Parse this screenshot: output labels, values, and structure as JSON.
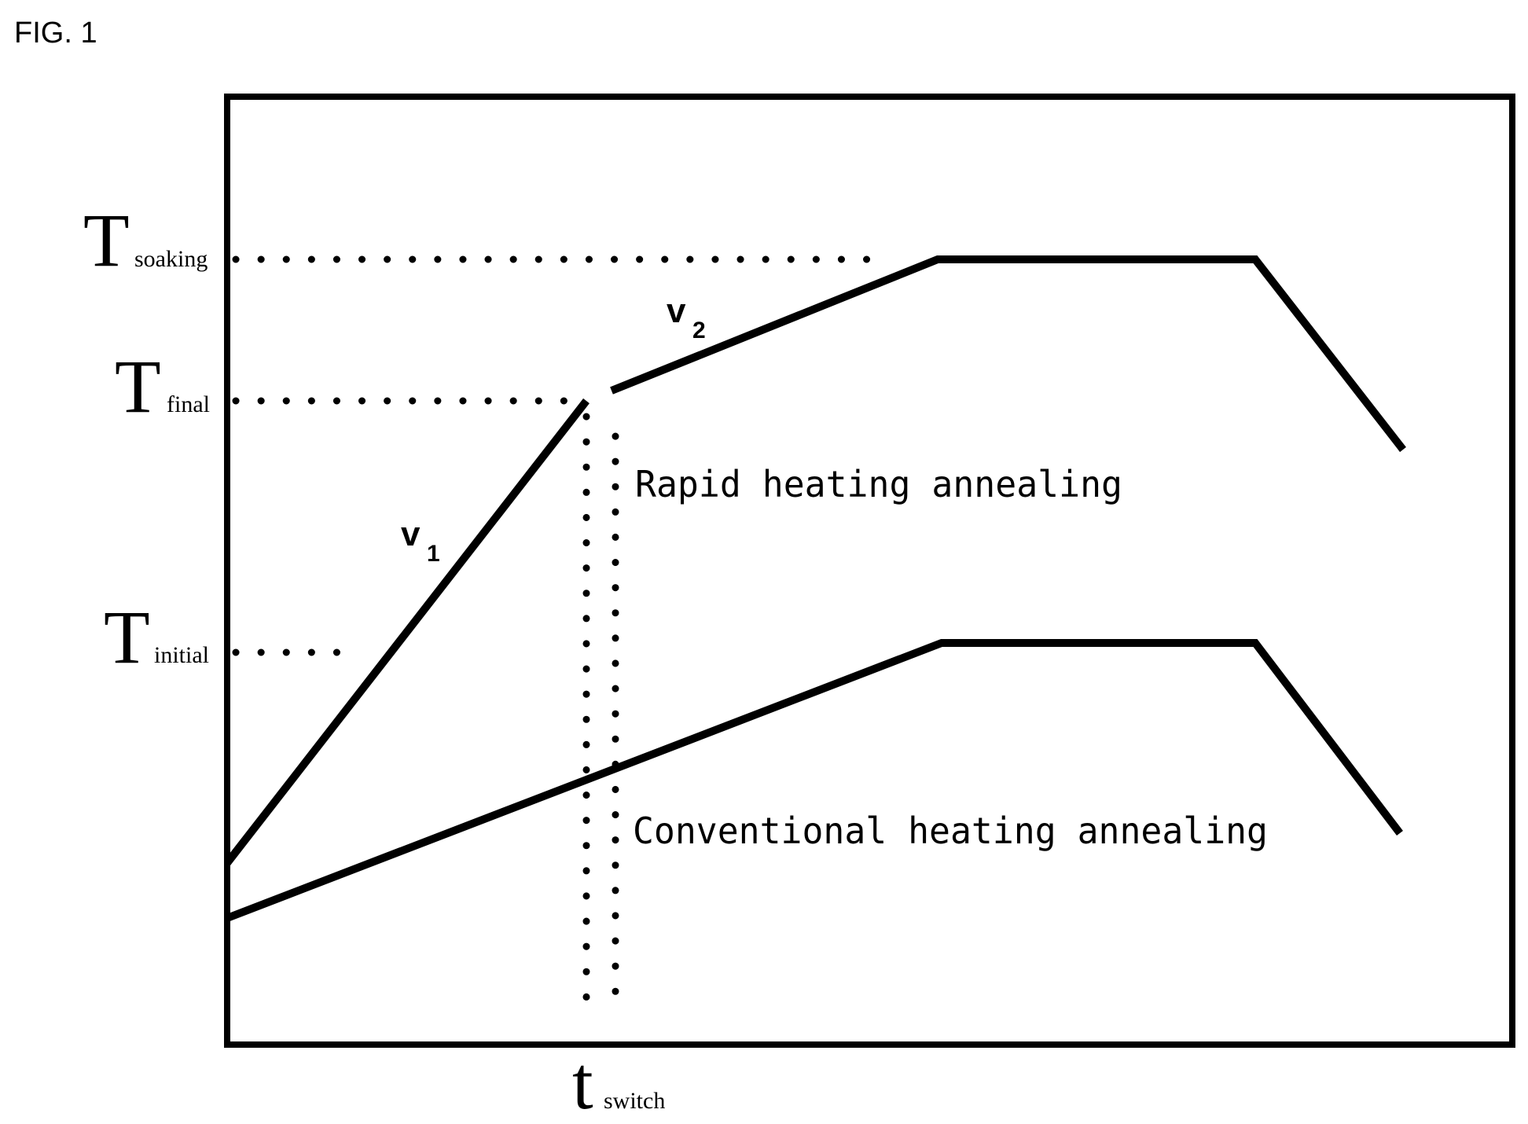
{
  "figure_label": "FIG. 1",
  "y_axis_labels": {
    "soaking": {
      "main": "T",
      "sub": "soaking"
    },
    "final": {
      "main": "T",
      "sub": "final"
    },
    "initial": {
      "main": "T",
      "sub": "initial"
    }
  },
  "x_axis_label": {
    "main": "t",
    "sub": "switch"
  },
  "rate_labels": {
    "v1": {
      "main": "v",
      "sub": "1"
    },
    "v2": {
      "main": "v",
      "sub": "2"
    }
  },
  "curves": {
    "rapid": "Rapid heating annealing",
    "conventional": "Conventional heating annealing"
  }
}
